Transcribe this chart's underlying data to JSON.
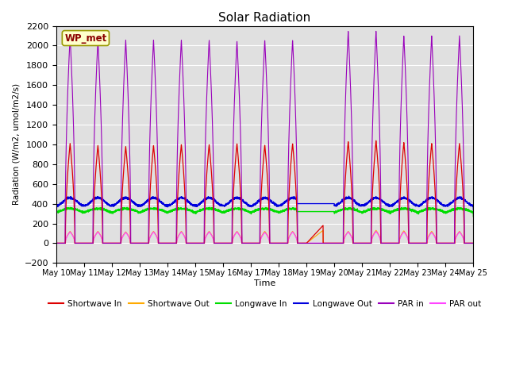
{
  "title": "Solar Radiation",
  "ylabel": "Radiation (W/m2, umol/m2/s)",
  "xlabel": "Time",
  "ylim": [
    -200,
    2200
  ],
  "xlim": [
    0,
    15
  ],
  "yticks": [
    -200,
    0,
    200,
    400,
    600,
    800,
    1000,
    1200,
    1400,
    1600,
    1800,
    2000,
    2200
  ],
  "xtick_labels": [
    "May 10",
    "May 11",
    "May 12",
    "May 13",
    "May 14",
    "May 15",
    "May 16",
    "May 17",
    "May 18",
    "May 19",
    "May 20",
    "May 21",
    "May 22",
    "May 23",
    "May 24",
    "May 25"
  ],
  "watermark": "WP_met",
  "colors": {
    "shortwave_in": "#dd0000",
    "shortwave_out": "#ffaa00",
    "longwave_in": "#00dd00",
    "longwave_out": "#0000dd",
    "par_in": "#9900bb",
    "par_out": "#ff44ff"
  },
  "legend": [
    "Shortwave In",
    "Shortwave Out",
    "Longwave In",
    "Longwave Out",
    "PAR in",
    "PAR out"
  ],
  "background_color": "#e0e0e0",
  "fig_background": "#ffffff",
  "grid_color": "#ffffff"
}
